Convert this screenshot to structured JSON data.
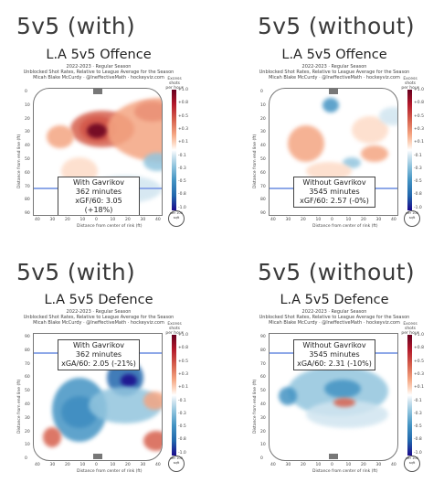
{
  "headings": [
    "5v5 (with)",
    "5v5 (without)",
    "5v5 (with)",
    "5v5 (without)"
  ],
  "panels": [
    {
      "title": "L.A 5v5 Offence",
      "sub1": "2022-2023 · Regular Season",
      "sub2": "Unblocked Shot Rates, Relative to League Average for the Season",
      "sub3": "Micah Blake McCurdy · @IneffectiveMath · hockeyviz.com",
      "box1": "With Gavrikov",
      "box2": "362 minutes",
      "box3": "xGF/60: 3.05 (+18%)",
      "cbar_title": "Excess shots per hour",
      "logo": "per 100 sqft"
    },
    {
      "title": "L.A 5v5 Offence",
      "sub1": "2022-2023 · Regular Season",
      "sub2": "Unblocked Shot Rates, Relative to League Average for the Season",
      "sub3": "Micah Blake McCurdy · @IneffectiveMath · hockeyviz.com",
      "box1": "Without Gavrikov",
      "box2": "3545 minutes",
      "box3": "xGF/60: 2.57 (-0%)",
      "cbar_title": "Excess shots per hour",
      "logo": "per 100 sqft"
    },
    {
      "title": "L.A 5v5 Defence",
      "sub1": "2022-2023 · Regular Season",
      "sub2": "Unblocked Shot Rates, Relative to League Average for the Season",
      "sub3": "Micah Blake McCurdy · @IneffectiveMath · hockeyviz.com",
      "box1": "With Gavrikov",
      "box2": "362 minutes",
      "box3": "xGA/60: 2.05 (-21%)",
      "cbar_title": "Excess shots per hour",
      "logo": "per 100 sqft"
    },
    {
      "title": "L.A 5v5 Defence",
      "sub1": "2022-2023 · Regular Season",
      "sub2": "Unblocked Shot Rates, Relative to League Average for the Season",
      "sub3": "Micah Blake McCurdy · @IneffectiveMath · hockeyviz.com",
      "box1": "Without Gavrikov",
      "box2": "3545 minutes",
      "box3": "xGA/60: 2.31 (-10%)",
      "cbar_title": "Excess shots per hour",
      "logo": "per 100 sqft"
    }
  ],
  "axes": {
    "ylabel": "Distance from end line (ft)",
    "xlabel": "Distance from center of rink (ft)",
    "yticks_off": [
      "0",
      "10",
      "20",
      "30",
      "40",
      "50",
      "60",
      "70",
      "80",
      "90"
    ],
    "yticks_def": [
      "90",
      "80",
      "70",
      "60",
      "50",
      "40",
      "30",
      "20",
      "10",
      "0"
    ],
    "xticks": [
      "40",
      "30",
      "20",
      "10",
      "0",
      "10",
      "20",
      "30",
      "40"
    ],
    "cbar_labels": [
      "+1.0",
      "+0.8",
      "+0.5",
      "+0.3",
      "+0.1",
      "-0.1",
      "-0.3",
      "-0.5",
      "-0.8",
      "-1.0"
    ]
  },
  "colors": {
    "positive": "#b2182b",
    "negative": "#2166ac",
    "neutral": "#ffffff",
    "blueline": "#8ea8e8"
  },
  "chart_data": [
    {
      "type": "heatmap",
      "title": "L.A 5v5 Offence",
      "xlabel": "Distance from center of rink (ft)",
      "ylabel": "Distance from end line (ft)",
      "xlim": [
        -42,
        42
      ],
      "ylim": [
        0,
        90
      ],
      "colorbar_range": [
        -1.0,
        1.0
      ],
      "annotation": [
        "With Gavrikov",
        "362 minutes",
        "xGF/60: 3.05 (+18%)"
      ]
    },
    {
      "type": "heatmap",
      "title": "L.A 5v5 Offence",
      "xlabel": "Distance from center of rink (ft)",
      "ylabel": "Distance from end line (ft)",
      "xlim": [
        -42,
        42
      ],
      "ylim": [
        0,
        90
      ],
      "colorbar_range": [
        -1.0,
        1.0
      ],
      "annotation": [
        "Without Gavrikov",
        "3545 minutes",
        "xGF/60: 2.57 (-0%)"
      ]
    },
    {
      "type": "heatmap",
      "title": "L.A 5v5 Defence",
      "xlabel": "Distance from center of rink (ft)",
      "ylabel": "Distance from end line (ft)",
      "xlim": [
        -42,
        42
      ],
      "ylim": [
        0,
        90
      ],
      "colorbar_range": [
        -1.0,
        1.0
      ],
      "annotation": [
        "With Gavrikov",
        "362 minutes",
        "xGA/60: 2.05 (-21%)"
      ]
    },
    {
      "type": "heatmap",
      "title": "L.A 5v5 Defence",
      "xlabel": "Distance from center of rink (ft)",
      "ylabel": "Distance from end line (ft)",
      "xlim": [
        -42,
        42
      ],
      "ylim": [
        0,
        90
      ],
      "colorbar_range": [
        -1.0,
        1.0
      ],
      "annotation": [
        "Without Gavrikov",
        "3545 minutes",
        "xGA/60: 2.31 (-10%)"
      ]
    }
  ]
}
